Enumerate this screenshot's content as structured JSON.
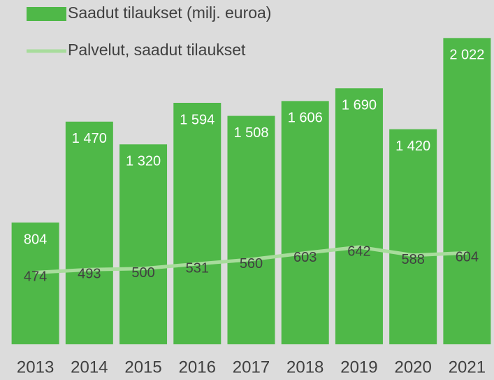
{
  "chart_data": {
    "type": "combo",
    "categories": [
      "2013",
      "2014",
      "2015",
      "2016",
      "2017",
      "2018",
      "2019",
      "2020",
      "2021"
    ],
    "series": [
      {
        "name": "Saadut tilaukset (milj. euroa)",
        "type": "bar",
        "color": "#4fb848",
        "values": [
          804,
          1470,
          1320,
          1594,
          1508,
          1606,
          1690,
          1420,
          2022
        ],
        "value_labels": [
          "804",
          "1 470",
          "1 320",
          "1 594",
          "1 508",
          "1 606",
          "1 690",
          "1 420",
          "2 022"
        ]
      },
      {
        "name": "Palvelut, saadut tilaukset",
        "type": "line",
        "color": "#a8dc9c",
        "values": [
          474,
          493,
          500,
          531,
          560,
          603,
          642,
          588,
          604
        ]
      }
    ],
    "ylim": [
      0,
      2273
    ],
    "legend": "top-left"
  }
}
